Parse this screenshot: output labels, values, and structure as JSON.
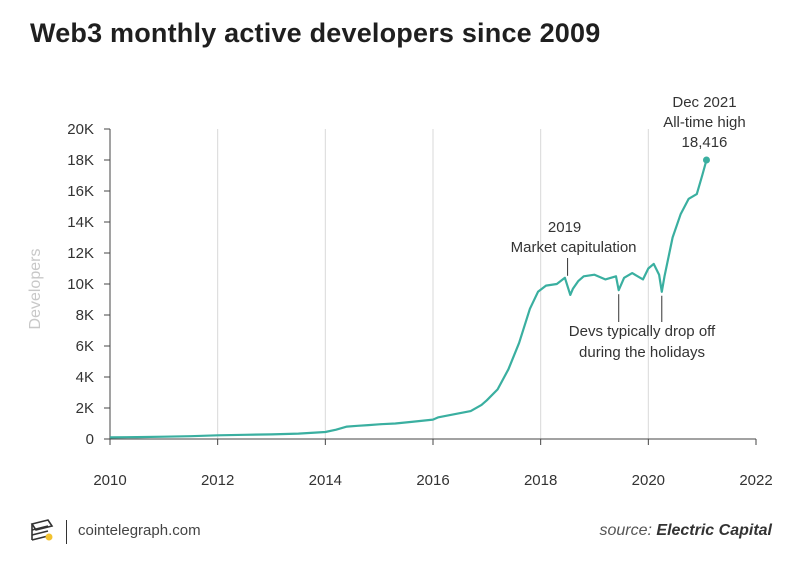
{
  "title": "Web3 monthly active developers since 2009",
  "footer": {
    "site": "cointelegraph.com",
    "source_prefix": "source:",
    "source_name": "Electric Capital",
    "logo_icon": "cointelegraph-logo-icon"
  },
  "colors": {
    "line": "#3aafa0",
    "grid": "#d9d9d9",
    "text": "#333333",
    "ylabel": "#c8c8c8"
  },
  "chart_data": {
    "type": "line",
    "title": "Web3 monthly active developers since 2009",
    "xlabel": "",
    "ylabel": "Developers",
    "xlim": [
      2010,
      2022
    ],
    "ylim": [
      0,
      20000
    ],
    "x_ticks": [
      "2010",
      "2012",
      "2014",
      "2016",
      "2018",
      "2020",
      "2022"
    ],
    "y_ticks": [
      "0",
      "2K",
      "4K",
      "6K",
      "8K",
      "10K",
      "12K",
      "14K",
      "16K",
      "18K",
      "20K"
    ],
    "grid": "vertical",
    "series": [
      {
        "x": [
          2010.0,
          2010.5,
          2011.0,
          2011.5,
          2012.0,
          2012.5,
          2013.0,
          2013.5,
          2014.0,
          2014.2,
          2014.4,
          2014.6,
          2014.8,
          2015.0,
          2015.3,
          2015.6,
          2016.0,
          2016.1,
          2016.4,
          2016.7,
          2016.9,
          2017.0,
          2017.2,
          2017.4,
          2017.6,
          2017.8,
          2017.95,
          2018.1,
          2018.3,
          2018.45,
          2018.55,
          2018.6,
          2018.7,
          2018.8,
          2019.0,
          2019.2,
          2019.4,
          2019.45,
          2019.55,
          2019.7,
          2019.9,
          2020.0,
          2020.1,
          2020.2,
          2020.25,
          2020.3,
          2020.45,
          2020.6,
          2020.75,
          2020.9,
          2021.0,
          2021.08
        ],
        "y": [
          100,
          120,
          150,
          180,
          240,
          270,
          300,
          350,
          450,
          600,
          800,
          850,
          900,
          950,
          1000,
          1100,
          1250,
          1400,
          1600,
          1800,
          2200,
          2500,
          3200,
          4500,
          6200,
          8400,
          9500,
          9900,
          10000,
          10400,
          9300,
          9700,
          10200,
          10500,
          10600,
          10300,
          10500,
          9600,
          10400,
          10700,
          10300,
          11000,
          11300,
          10600,
          9500,
          10500,
          13000,
          14500,
          15500,
          15800,
          17000,
          18000
        ]
      }
    ],
    "annotations": [
      {
        "lines": [
          "Dec 2021",
          "All-time high",
          "18,416"
        ],
        "x": 2021.08,
        "y": 18000
      },
      {
        "lines": [
          "2019",
          "Market capitulation"
        ],
        "x": 2018.5,
        "y": 10400
      },
      {
        "lines": [
          "Devs typically drop off",
          "during the holidays"
        ],
        "x": [
          2019.45,
          2020.25
        ],
        "y": [
          9600,
          9500
        ]
      }
    ]
  }
}
